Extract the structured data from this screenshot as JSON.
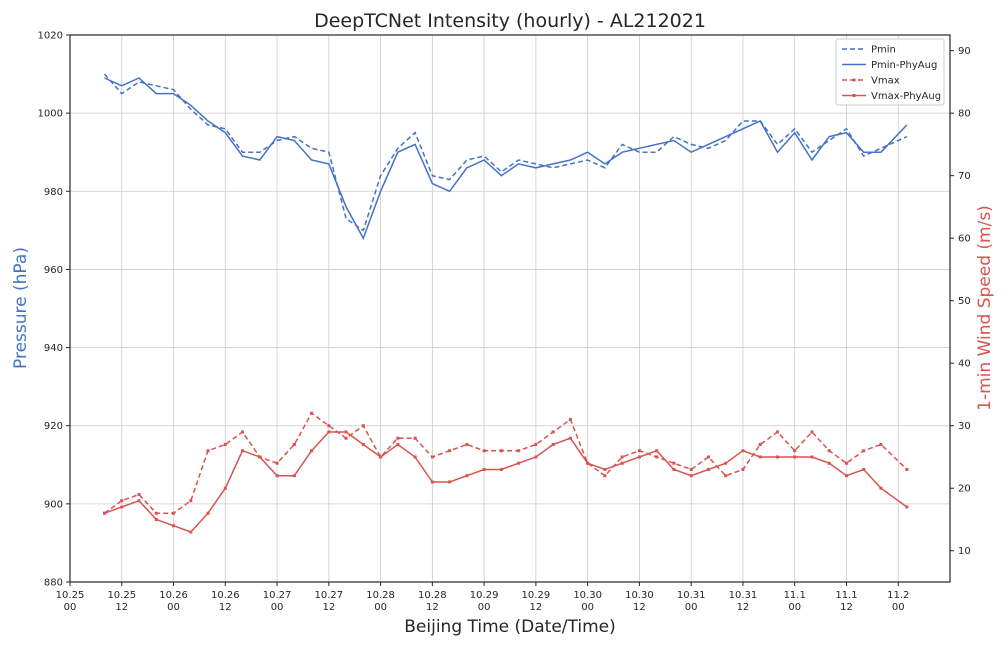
{
  "chart_data": {
    "type": "line",
    "title": "DeepTCNet Intensity (hourly) - AL212021",
    "xlabel": "Beijing Time (Date/Time)",
    "ylabel_left": "Pressure (hPa)",
    "ylabel_right": "1-min Wind Speed (m/s)",
    "ylim_left": [
      880,
      1020
    ],
    "ylim_right": [
      5,
      92.5
    ],
    "yticks_left": [
      "880",
      "900",
      "920",
      "940",
      "960",
      "980",
      "1000",
      "1020"
    ],
    "yticks_right": [
      "10",
      "20",
      "30",
      "40",
      "50",
      "60",
      "70",
      "80",
      "90"
    ],
    "xticks": [
      {
        "date": "10.25",
        "time": "00"
      },
      {
        "date": "10.25",
        "time": "12"
      },
      {
        "date": "10.26",
        "time": "00"
      },
      {
        "date": "10.26",
        "time": "12"
      },
      {
        "date": "10.27",
        "time": "00"
      },
      {
        "date": "10.27",
        "time": "12"
      },
      {
        "date": "10.28",
        "time": "00"
      },
      {
        "date": "10.28",
        "time": "12"
      },
      {
        "date": "10.29",
        "time": "00"
      },
      {
        "date": "10.29",
        "time": "12"
      },
      {
        "date": "10.30",
        "time": "00"
      },
      {
        "date": "10.30",
        "time": "12"
      },
      {
        "date": "10.31",
        "time": "00"
      },
      {
        "date": "10.31",
        "time": "12"
      },
      {
        "date": "11.1",
        "time": "00"
      },
      {
        "date": "11.1",
        "time": "12"
      },
      {
        "date": "11.2",
        "time": "00"
      }
    ],
    "grid": true,
    "legend_position": "top-right",
    "x_hours_since_10_25_00": [
      8,
      12,
      16,
      20,
      24,
      28,
      32,
      36,
      40,
      44,
      48,
      52,
      56,
      60,
      64,
      68,
      72,
      76,
      80,
      84,
      88,
      92,
      96,
      100,
      104,
      108,
      112,
      116,
      120,
      124,
      128,
      132,
      136,
      140,
      144,
      148,
      152,
      156,
      160,
      164,
      168,
      172,
      176,
      180,
      184,
      188,
      194
    ],
    "series": [
      {
        "name": "Pmin",
        "axis": "left",
        "color": "#4472c4",
        "dash": "dashed",
        "values": [
          1010,
          1005,
          1008,
          1007,
          1006,
          1001,
          997,
          996,
          990,
          990,
          993,
          994,
          991,
          990,
          973,
          970,
          984,
          991,
          995,
          984,
          983,
          988,
          989,
          985,
          988,
          987,
          986,
          987,
          988,
          986,
          992,
          990,
          990,
          994,
          992,
          991,
          993,
          998,
          998,
          992,
          996,
          990,
          993,
          996,
          989,
          991,
          994
        ]
      },
      {
        "name": "Pmin-PhyAug",
        "axis": "left",
        "color": "#4472c4",
        "dash": "solid",
        "values": [
          1009,
          1007,
          1009,
          1005,
          1005,
          1002,
          998,
          995,
          989,
          988,
          994,
          993,
          988,
          987,
          976,
          968,
          980,
          990,
          992,
          982,
          980,
          986,
          988,
          984,
          987,
          986,
          987,
          988,
          990,
          987,
          990,
          991,
          992,
          993,
          990,
          992,
          994,
          996,
          998,
          990,
          995,
          988,
          994,
          995,
          990,
          990,
          997
        ]
      },
      {
        "name": "Vmax",
        "axis": "right",
        "color": "#d9534f",
        "dash": "dashed",
        "values": [
          16,
          18,
          19,
          16,
          16,
          18,
          26,
          27,
          29,
          25,
          24,
          27,
          32,
          30,
          28,
          30,
          25,
          28,
          28,
          25,
          26,
          27,
          26,
          26,
          26,
          27,
          29,
          31,
          24,
          22,
          25,
          26,
          25,
          24,
          23,
          25,
          22,
          23,
          27,
          29,
          26,
          29,
          26,
          24,
          26,
          27,
          23
        ]
      },
      {
        "name": "Vmax-PhyAug",
        "axis": "right",
        "color": "#d9534f",
        "dash": "solid",
        "values": [
          16,
          17,
          18,
          15,
          14,
          13,
          16,
          20,
          26,
          25,
          22,
          22,
          26,
          29,
          29,
          27,
          25,
          27,
          25,
          21,
          21,
          22,
          23,
          23,
          24,
          25,
          27,
          28,
          24,
          23,
          24,
          25,
          26,
          23,
          22,
          23,
          24,
          26,
          25,
          25,
          25,
          25,
          24,
          22,
          23,
          20,
          17
        ]
      }
    ]
  }
}
